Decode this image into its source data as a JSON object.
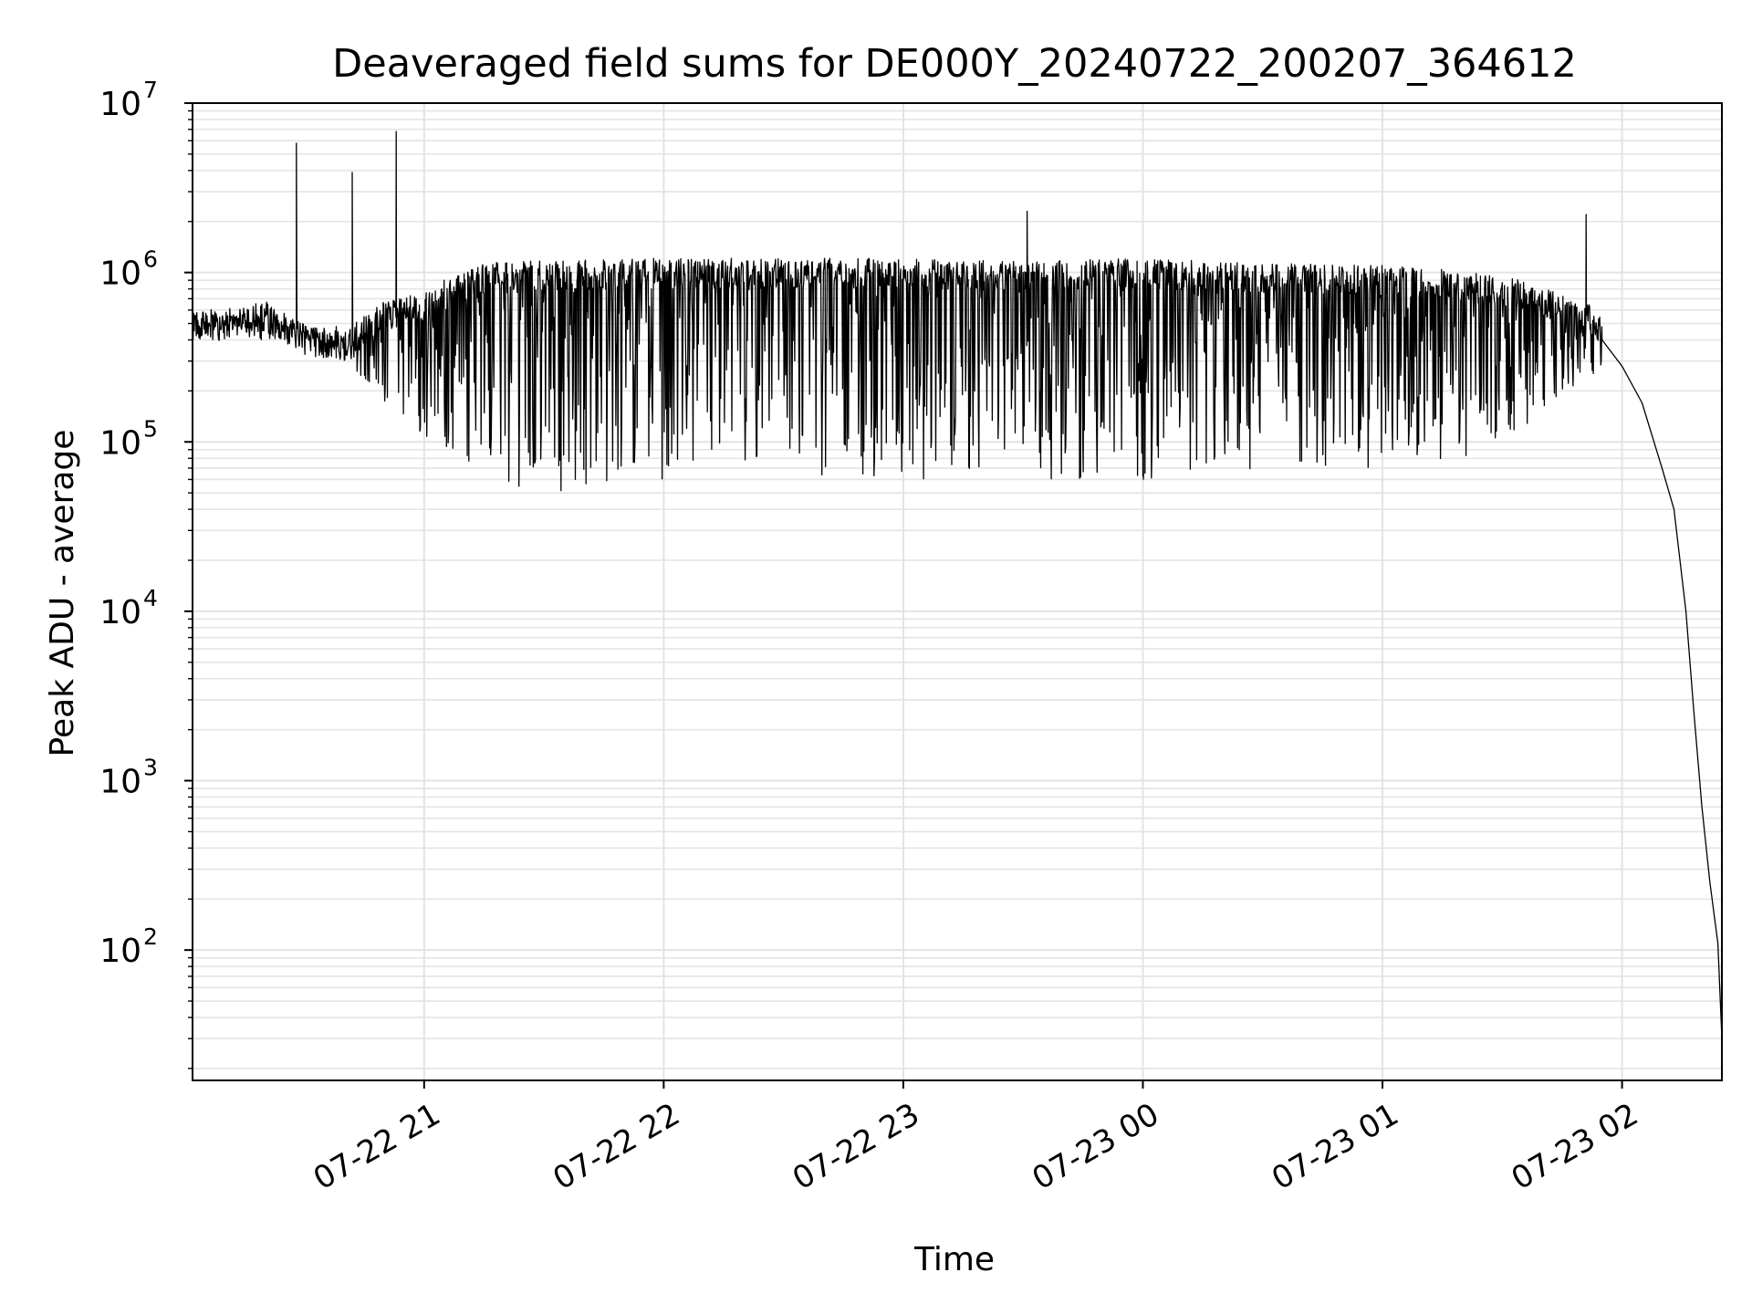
{
  "chart_data": {
    "type": "line",
    "title": "Deaveraged field sums for DE000Y_20240722_200207_364612",
    "xlabel": "Time",
    "ylabel": "Peak ADU - average",
    "y_scale": "log",
    "ylim": [
      17,
      10000000
    ],
    "xlim": [
      "2024-07-22 20:02",
      "2024-07-23 02:25"
    ],
    "grid": true,
    "x_ticks": [
      {
        "time": "2024-07-22 21:00",
        "label": "07-22 21"
      },
      {
        "time": "2024-07-22 22:00",
        "label": "07-22 22"
      },
      {
        "time": "2024-07-22 23:00",
        "label": "07-22 23"
      },
      {
        "time": "2024-07-23 00:00",
        "label": "07-23 00"
      },
      {
        "time": "2024-07-23 01:00",
        "label": "07-23 01"
      },
      {
        "time": "2024-07-23 02:00",
        "label": "07-23 02"
      }
    ],
    "y_ticks": [
      {
        "value": 100,
        "base": "10",
        "exp": "2"
      },
      {
        "value": 1000,
        "base": "10",
        "exp": "3"
      },
      {
        "value": 10000,
        "base": "10",
        "exp": "4"
      },
      {
        "value": 100000,
        "base": "10",
        "exp": "5"
      },
      {
        "value": 1000000,
        "base": "10",
        "exp": "6"
      },
      {
        "value": 10000000,
        "base": "10",
        "exp": "7"
      }
    ],
    "series": [
      {
        "color": "#000000",
        "x": [
          "2024-07-22 20:02",
          "2024-07-22 20:10",
          "2024-07-22 20:20",
          "2024-07-22 20:28",
          "2024-07-22 20:30",
          "2024-07-22 20:32",
          "2024-07-22 20:38",
          "2024-07-22 20:42",
          "2024-07-22 20:46",
          "2024-07-22 20:50",
          "2024-07-22 20:53",
          "2024-07-22 20:54",
          "2024-07-22 20:58",
          "2024-07-22 21:05",
          "2024-07-22 21:20",
          "2024-07-22 21:40",
          "2024-07-22 22:00",
          "2024-07-22 22:30",
          "2024-07-22 23:00",
          "2024-07-22 23:30",
          "2024-07-22 23:31",
          "2024-07-22 23:32",
          "2024-07-23 00:00",
          "2024-07-23 00:30",
          "2024-07-23 01:00",
          "2024-07-23 01:30",
          "2024-07-23 01:48",
          "2024-07-23 01:51",
          "2024-07-23 01:52",
          "2024-07-23 01:55",
          "2024-07-23 02:00",
          "2024-07-23 02:05",
          "2024-07-23 02:08",
          "2024-07-23 02:10",
          "2024-07-23 02:13",
          "2024-07-23 02:16",
          "2024-07-23 02:18",
          "2024-07-23 02:20",
          "2024-07-23 02:22",
          "2024-07-23 02:24",
          "2024-07-23 02:25"
        ],
        "y": [
          500000,
          520000,
          550000,
          5800000,
          420000,
          450000,
          480000,
          3900000,
          480000,
          300000,
          6800000,
          400000,
          700000,
          900000,
          1000000,
          900000,
          1000000,
          1100000,
          900000,
          1000000,
          2300000,
          1000000,
          900000,
          1000000,
          900000,
          700000,
          420000,
          2200000,
          460000,
          400000,
          280000,
          170000,
          100000,
          70000,
          40000,
          10000,
          2500,
          700,
          250,
          110,
          30
        ],
        "envelope_high": [
          800000,
          800000,
          900000,
          650000,
          600000,
          900000,
          1000000,
          1500000,
          1550000,
          1600000,
          1600000,
          1600000,
          1550000,
          1600000,
          1500000,
          1450000,
          1350000,
          1200000,
          800000
        ],
        "envelope_low": [
          380000,
          400000,
          400000,
          420000,
          300000,
          170000,
          110000,
          60000,
          50000,
          60000,
          60000,
          60000,
          60000,
          60000,
          70000,
          70000,
          80000,
          120000,
          250000
        ],
        "envelope_x": [
          "2024-07-22 20:02",
          "2024-07-22 20:10",
          "2024-07-22 20:20",
          "2024-07-22 20:30",
          "2024-07-22 20:40",
          "2024-07-22 20:50",
          "2024-07-22 21:00",
          "2024-07-22 21:15",
          "2024-07-22 21:30",
          "2024-07-22 22:00",
          "2024-07-22 22:30",
          "2024-07-22 23:00",
          "2024-07-22 23:30",
          "2024-07-23 00:00",
          "2024-07-23 00:30",
          "2024-07-23 01:00",
          "2024-07-23 01:20",
          "2024-07-23 01:35",
          "2024-07-23 01:55"
        ]
      }
    ]
  }
}
